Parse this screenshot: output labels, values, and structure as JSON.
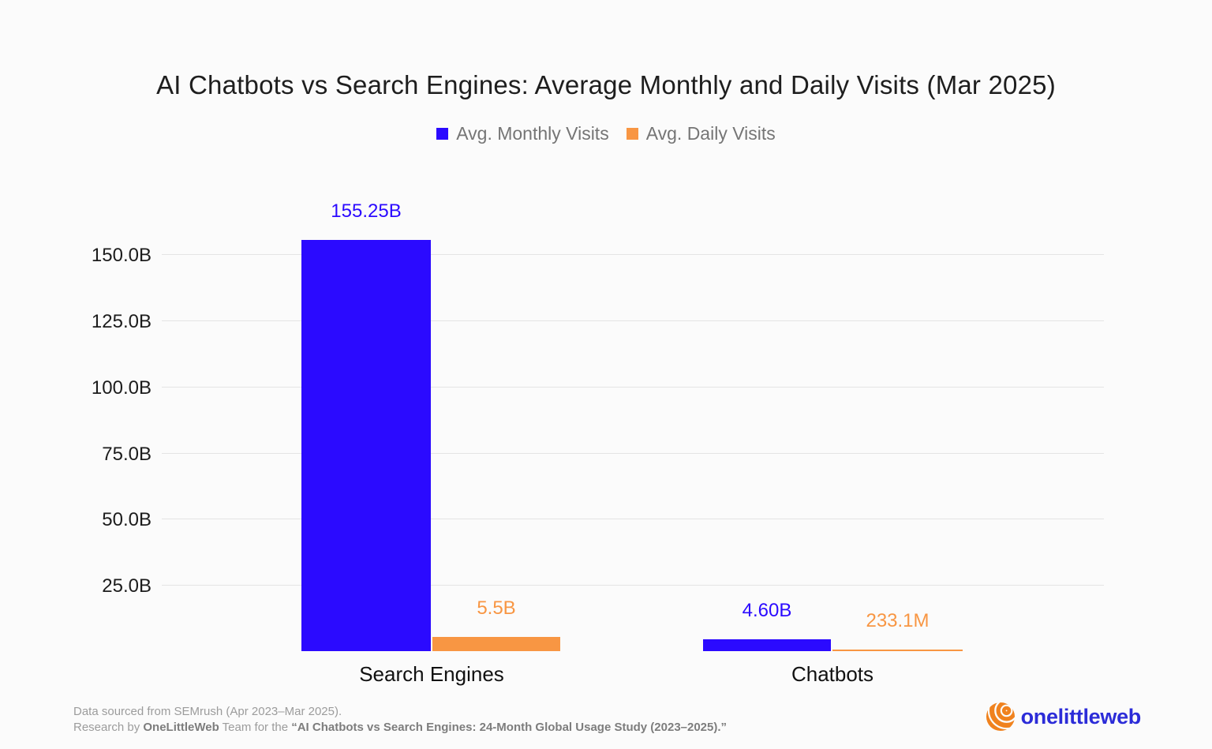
{
  "title": "AI Chatbots vs Search Engines: Average Monthly and Daily Visits (Mar 2025)",
  "legend": {
    "monthly": "Avg. Monthly Visits",
    "daily": "Avg. Daily Visits"
  },
  "colors": {
    "monthly": "#2b0aff",
    "daily": "#f89643",
    "grid": "#e4e4e4",
    "brand_text": "#2c2cd8",
    "brand_ball": "#f0821e"
  },
  "chart_data": {
    "type": "bar",
    "categories": [
      "Search Engines",
      "Chatbots"
    ],
    "series": [
      {
        "name": "Avg. Monthly Visits",
        "color": "#2b0aff",
        "values_billions": [
          155.25,
          4.6
        ],
        "labels": [
          "155.25B",
          "4.60B"
        ]
      },
      {
        "name": "Avg. Daily Visits",
        "color": "#f89643",
        "values_billions": [
          5.5,
          0.2331
        ],
        "labels": [
          "5.5B",
          "233.1M"
        ]
      }
    ],
    "yticks": [
      {
        "label": "150.0B",
        "value": 150
      },
      {
        "label": "125.0B",
        "value": 125
      },
      {
        "label": "100.0B",
        "value": 100
      },
      {
        "label": "75.0B",
        "value": 75
      },
      {
        "label": "50.0B",
        "value": 50
      },
      {
        "label": "25.0B",
        "value": 25
      }
    ],
    "ylim_billions": [
      0,
      174
    ],
    "grid": true,
    "legend_position": "top-center"
  },
  "footer": {
    "line1": "Data sourced from SEMrush (Apr 2023–Mar 2025).",
    "line2_prefix": "Research by ",
    "line2_team": "OneLittleWeb",
    "line2_mid": " Team for the ",
    "line2_study": "“AI Chatbots vs Search Engines: 24-Month Global Usage Study (2023–2025).”"
  },
  "brand": {
    "name": "onelittleweb"
  }
}
